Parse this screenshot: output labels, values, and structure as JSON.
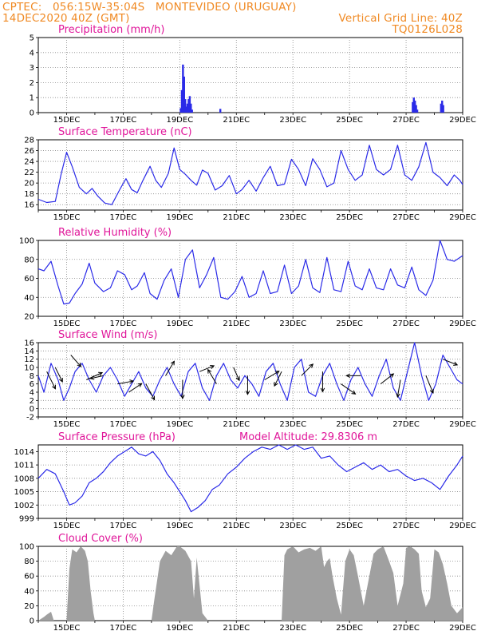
{
  "header": {
    "line1": "CPTEC:   056:15W-35:04S   MONTEVIDEO (URUGUAY)",
    "line2": "14DEC2020 40Z (GMT)",
    "grid_note": "Vertical Grid Line: 40Z",
    "code": "TQ0126L028"
  },
  "colors": {
    "header": "#f08a24",
    "titles": "#e0169a",
    "line": "#2a2ae8",
    "cloud": "#a0a0a0"
  },
  "chart_data": [
    {
      "type": "bar",
      "title": "Precipitation (mm/h)",
      "x_labels": [
        "15DEC",
        "17DEC",
        "19DEC",
        "21DEC",
        "23DEC",
        "25DEC",
        "27DEC",
        "29DEC"
      ],
      "xlim_days": [
        14.0,
        29.0
      ],
      "ylim": [
        0,
        5
      ],
      "yticks": [
        "0",
        "1",
        "2",
        "3",
        "4",
        "5"
      ],
      "grid": true,
      "bars": [
        {
          "x": 19.0,
          "y": 0.3
        },
        {
          "x": 19.04,
          "y": 1.5
        },
        {
          "x": 19.08,
          "y": 3.2
        },
        {
          "x": 19.12,
          "y": 2.4
        },
        {
          "x": 19.16,
          "y": 0.9
        },
        {
          "x": 19.2,
          "y": 0.4
        },
        {
          "x": 19.24,
          "y": 0.6
        },
        {
          "x": 19.28,
          "y": 0.9
        },
        {
          "x": 19.32,
          "y": 1.1
        },
        {
          "x": 19.36,
          "y": 0.6
        },
        {
          "x": 19.4,
          "y": 0.2
        },
        {
          "x": 20.4,
          "y": 0.25
        },
        {
          "x": 27.2,
          "y": 0.7
        },
        {
          "x": 27.24,
          "y": 1.0
        },
        {
          "x": 27.28,
          "y": 0.8
        },
        {
          "x": 27.32,
          "y": 0.5
        },
        {
          "x": 27.36,
          "y": 0.2
        },
        {
          "x": 28.2,
          "y": 0.6
        },
        {
          "x": 28.24,
          "y": 0.8
        },
        {
          "x": 28.28,
          "y": 0.5
        }
      ]
    },
    {
      "type": "line",
      "title": "Surface Temperature (nC)",
      "x_labels": [
        "15DEC",
        "17DEC",
        "19DEC",
        "21DEC",
        "23DEC",
        "25DEC",
        "27DEC",
        "29DEC"
      ],
      "xlim_days": [
        14.0,
        29.0
      ],
      "ylim": [
        15,
        28
      ],
      "yticks": [
        "16",
        "18",
        "20",
        "22",
        "24",
        "26",
        "28"
      ],
      "grid": true,
      "x": [
        14.0,
        14.3,
        14.6,
        14.8,
        15.0,
        15.2,
        15.45,
        15.7,
        15.9,
        16.1,
        16.35,
        16.6,
        16.9,
        17.1,
        17.3,
        17.5,
        17.7,
        17.95,
        18.15,
        18.35,
        18.6,
        18.8,
        19.0,
        19.2,
        19.4,
        19.6,
        19.8,
        20.0,
        20.25,
        20.5,
        20.75,
        21.0,
        21.2,
        21.45,
        21.7,
        21.95,
        22.2,
        22.45,
        22.7,
        22.95,
        23.2,
        23.45,
        23.7,
        23.95,
        24.2,
        24.45,
        24.7,
        24.95,
        25.2,
        25.45,
        25.7,
        25.95,
        26.2,
        26.45,
        26.7,
        26.95,
        27.2,
        27.45,
        27.7,
        27.95,
        28.2,
        28.45,
        28.7,
        28.9,
        29.0
      ],
      "y": [
        17.0,
        16.4,
        16.6,
        21.5,
        25.7,
        23.0,
        19.2,
        18.0,
        19.0,
        17.6,
        16.3,
        16.0,
        19.0,
        20.8,
        18.8,
        18.2,
        20.5,
        23.1,
        20.5,
        19.2,
        21.8,
        26.5,
        22.5,
        21.6,
        20.5,
        19.6,
        22.4,
        21.8,
        18.7,
        19.5,
        21.4,
        18.0,
        18.8,
        20.5,
        18.5,
        21.0,
        23.1,
        19.5,
        19.8,
        24.4,
        22.5,
        19.5,
        24.5,
        22.5,
        19.3,
        20.0,
        26.0,
        22.5,
        20.5,
        21.5,
        27.0,
        22.5,
        21.5,
        22.5,
        27.0,
        21.5,
        20.5,
        23.0,
        27.5,
        22.0,
        21.0,
        19.5,
        21.5,
        20.5,
        19.7
      ]
    },
    {
      "type": "line",
      "title": "Relative Humidity (%)",
      "x_labels": [
        "15DEC",
        "17DEC",
        "19DEC",
        "21DEC",
        "23DEC",
        "25DEC",
        "27DEC",
        "29DEC"
      ],
      "xlim_days": [
        14.0,
        29.0
      ],
      "ylim": [
        20,
        100
      ],
      "yticks": [
        "20",
        "40",
        "60",
        "80",
        "100"
      ],
      "grid": true,
      "x": [
        14.0,
        14.2,
        14.45,
        14.7,
        14.9,
        15.1,
        15.3,
        15.55,
        15.8,
        16.0,
        16.3,
        16.55,
        16.8,
        17.05,
        17.3,
        17.5,
        17.75,
        17.95,
        18.2,
        18.45,
        18.7,
        18.95,
        19.2,
        19.45,
        19.7,
        19.95,
        20.2,
        20.45,
        20.7,
        20.95,
        21.2,
        21.45,
        21.7,
        21.95,
        22.2,
        22.45,
        22.7,
        22.95,
        23.2,
        23.45,
        23.7,
        23.95,
        24.2,
        24.45,
        24.7,
        24.95,
        25.2,
        25.45,
        25.7,
        25.95,
        26.2,
        26.45,
        26.7,
        26.95,
        27.2,
        27.45,
        27.7,
        27.95,
        28.2,
        28.45,
        28.7,
        28.95,
        29.0
      ],
      "y": [
        70,
        68,
        78,
        52,
        33,
        34,
        44,
        54,
        76,
        55,
        46,
        50,
        68,
        64,
        48,
        52,
        66,
        44,
        38,
        58,
        70,
        40,
        80,
        90,
        50,
        64,
        82,
        40,
        38,
        46,
        62,
        40,
        44,
        68,
        44,
        46,
        74,
        44,
        52,
        80,
        50,
        45,
        82,
        48,
        46,
        78,
        52,
        48,
        70,
        50,
        48,
        70,
        53,
        50,
        72,
        48,
        42,
        58,
        100,
        80,
        78,
        83,
        84
      ]
    },
    {
      "type": "line",
      "title": "Surface Wind (m/s)",
      "x_labels": [
        "15DEC",
        "17DEC",
        "19DEC",
        "21DEC",
        "23DEC",
        "25DEC",
        "27DEC",
        "29DEC"
      ],
      "xlim_days": [
        14.0,
        29.0
      ],
      "ylim": [
        -2,
        16
      ],
      "yticks": [
        "-2",
        "0",
        "2",
        "4",
        "6",
        "8",
        "10",
        "12",
        "14",
        "16"
      ],
      "grid": true,
      "x": [
        14.0,
        14.2,
        14.45,
        14.7,
        14.9,
        15.1,
        15.3,
        15.55,
        15.8,
        16.05,
        16.3,
        16.55,
        16.8,
        17.05,
        17.3,
        17.55,
        17.8,
        18.05,
        18.3,
        18.55,
        18.8,
        19.05,
        19.3,
        19.55,
        19.8,
        20.05,
        20.3,
        20.55,
        20.8,
        21.05,
        21.3,
        21.55,
        21.8,
        22.05,
        22.3,
        22.55,
        22.8,
        23.05,
        23.3,
        23.55,
        23.8,
        24.05,
        24.3,
        24.55,
        24.8,
        25.05,
        25.3,
        25.55,
        25.8,
        26.05,
        26.3,
        26.55,
        26.8,
        27.05,
        27.3,
        27.55,
        27.8,
        28.05,
        28.3,
        28.55,
        28.8,
        29.0
      ],
      "y": [
        8,
        4,
        11,
        7,
        2,
        5,
        9,
        11,
        7,
        4,
        8,
        10,
        7,
        3,
        6,
        9,
        5,
        3,
        7,
        10,
        6,
        3,
        9,
        11,
        5,
        2,
        8,
        11,
        7,
        5,
        8,
        6,
        3,
        9,
        11,
        6,
        2,
        10,
        12,
        4,
        3,
        8,
        11,
        6,
        2,
        7,
        10,
        6,
        3,
        8,
        12,
        5,
        2,
        9,
        16,
        8,
        2,
        6,
        13,
        10,
        7,
        6
      ],
      "vectors": [
        {
          "x": 14.3,
          "y": 9,
          "u": 0.6,
          "v": -1.2
        },
        {
          "x": 14.6,
          "y": 10,
          "u": 0.5,
          "v": -1.0
        },
        {
          "x": 15.15,
          "y": 13,
          "u": 0.7,
          "v": -0.8
        },
        {
          "x": 15.7,
          "y": 7,
          "u": 1.1,
          "v": 0.5
        },
        {
          "x": 16.3,
          "y": 8,
          "u": -0.9,
          "v": -0.2
        },
        {
          "x": 16.8,
          "y": 6,
          "u": 1.1,
          "v": 0.2
        },
        {
          "x": 17.2,
          "y": 4,
          "u": 0.9,
          "v": 0.6
        },
        {
          "x": 17.8,
          "y": 6,
          "u": 0.6,
          "v": -1.1
        },
        {
          "x": 18.5,
          "y": 8,
          "u": 0.6,
          "v": 1.0
        },
        {
          "x": 19.1,
          "y": 7,
          "u": 0.0,
          "v": -1.3
        },
        {
          "x": 19.7,
          "y": 9,
          "u": 1.0,
          "v": 0.4
        },
        {
          "x": 20.3,
          "y": 6,
          "u": -0.6,
          "v": 1.0
        },
        {
          "x": 20.9,
          "y": 10,
          "u": 0.4,
          "v": -0.9
        },
        {
          "x": 21.4,
          "y": 8,
          "u": 0.0,
          "v": -1.3
        },
        {
          "x": 22.0,
          "y": 7,
          "u": 1.0,
          "v": 0.6
        },
        {
          "x": 22.6,
          "y": 9,
          "u": -0.5,
          "v": -1.0
        },
        {
          "x": 23.3,
          "y": 8,
          "u": 0.8,
          "v": 0.8
        },
        {
          "x": 24.05,
          "y": 9,
          "u": 0.0,
          "v": -1.4
        },
        {
          "x": 24.7,
          "y": 6,
          "u": 1.0,
          "v": -0.7
        },
        {
          "x": 25.4,
          "y": 8,
          "u": -1.0,
          "v": 0.0
        },
        {
          "x": 26.1,
          "y": 6,
          "u": 0.9,
          "v": 0.7
        },
        {
          "x": 26.8,
          "y": 7,
          "u": -0.2,
          "v": -1.2
        },
        {
          "x": 27.7,
          "y": 8,
          "u": 0.5,
          "v": -1.2
        },
        {
          "x": 28.3,
          "y": 12,
          "u": 1.0,
          "v": -0.4
        }
      ]
    },
    {
      "type": "line",
      "title": "Surface Pressure (hPa)",
      "annotation": "Model Altitude: 29.8306 m",
      "x_labels": [
        "15DEC",
        "17DEC",
        "19DEC",
        "21DEC",
        "23DEC",
        "25DEC",
        "27DEC",
        "29DEC"
      ],
      "xlim_days": [
        14.0,
        29.0
      ],
      "ylim": [
        999,
        1015.5
      ],
      "yticks": [
        "999",
        "1002",
        "1005",
        "1008",
        "1011",
        "1014"
      ],
      "grid": true,
      "x": [
        14.0,
        14.3,
        14.6,
        14.9,
        15.1,
        15.3,
        15.55,
        15.8,
        16.05,
        16.3,
        16.55,
        16.8,
        17.05,
        17.3,
        17.55,
        17.8,
        18.05,
        18.3,
        18.55,
        18.8,
        19.0,
        19.2,
        19.4,
        19.65,
        19.9,
        20.15,
        20.4,
        20.7,
        21.0,
        21.3,
        21.6,
        21.9,
        22.2,
        22.5,
        22.8,
        23.1,
        23.4,
        23.7,
        24.0,
        24.3,
        24.6,
        24.9,
        25.2,
        25.5,
        25.8,
        26.1,
        26.4,
        26.7,
        27.0,
        27.3,
        27.6,
        27.9,
        28.2,
        28.5,
        28.8,
        29.0
      ],
      "y": [
        1008,
        1010,
        1009,
        1005,
        1002,
        1002.5,
        1004,
        1007,
        1008,
        1009.5,
        1011.5,
        1013,
        1014,
        1015,
        1013.5,
        1013,
        1014,
        1012,
        1009,
        1007,
        1005,
        1003,
        1000.5,
        1001.5,
        1003,
        1005.5,
        1006.5,
        1009,
        1010.5,
        1012.5,
        1014,
        1015,
        1014.5,
        1015.5,
        1014.5,
        1015.5,
        1014.5,
        1015,
        1012.5,
        1013,
        1011,
        1009.5,
        1010.5,
        1011.5,
        1010,
        1011,
        1009.5,
        1010,
        1008.5,
        1007.5,
        1008,
        1007,
        1005.5,
        1008.5,
        1011,
        1013
      ]
    },
    {
      "type": "bar",
      "title": "Cloud Cover (%)",
      "x_labels": [
        "15DEC",
        "17DEC",
        "19DEC",
        "21DEC",
        "23DEC",
        "25DEC",
        "27DEC",
        "29DEC"
      ],
      "xlim_days": [
        14.0,
        29.0
      ],
      "ylim": [
        0,
        100
      ],
      "yticks": [
        "0",
        "20",
        "40",
        "60",
        "80",
        "100"
      ],
      "grid": true,
      "envelope_x": [
        14.0,
        14.2,
        14.3,
        14.45,
        14.55,
        14.8,
        15.0,
        15.1,
        15.2,
        15.35,
        15.5,
        15.65,
        15.75,
        15.85,
        15.95,
        16.0,
        18.0,
        18.1,
        18.3,
        18.5,
        18.7,
        18.9,
        19.0,
        19.2,
        19.4,
        19.5,
        19.6,
        19.8,
        20.0,
        22.6,
        22.7,
        22.8,
        23.0,
        23.2,
        23.4,
        23.6,
        23.8,
        24.0,
        24.1,
        24.2,
        24.3,
        24.4,
        24.55,
        24.7,
        24.85,
        25.0,
        25.15,
        25.3,
        25.5,
        25.7,
        25.85,
        26.0,
        26.2,
        26.4,
        26.55,
        26.7,
        26.9,
        27.0,
        27.15,
        27.3,
        27.45,
        27.55,
        27.7,
        27.85,
        28.0,
        28.15,
        28.3,
        28.45,
        28.6,
        28.8,
        29.0
      ],
      "envelope_y": [
        0,
        5,
        8,
        12,
        0,
        0,
        0,
        70,
        96,
        92,
        100,
        94,
        80,
        40,
        10,
        0,
        0,
        28,
        80,
        94,
        88,
        100,
        100,
        94,
        80,
        30,
        85,
        10,
        0,
        0,
        88,
        96,
        100,
        92,
        96,
        98,
        94,
        100,
        72,
        80,
        84,
        60,
        30,
        8,
        80,
        96,
        88,
        60,
        20,
        60,
        90,
        96,
        100,
        80,
        64,
        20,
        50,
        98,
        100,
        96,
        90,
        40,
        18,
        30,
        96,
        92,
        76,
        50,
        20,
        10,
        18
      ]
    }
  ]
}
